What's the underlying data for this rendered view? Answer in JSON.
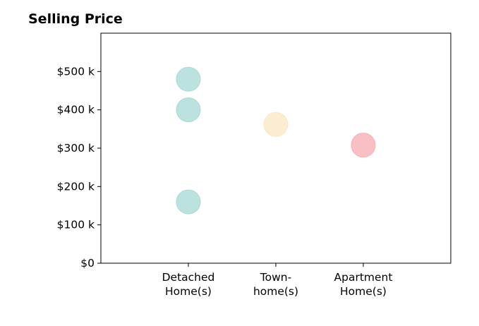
{
  "chart_data": {
    "type": "scatter",
    "title": "Selling Price",
    "xlabel": "",
    "ylabel": "",
    "categories": [
      [
        "Detached",
        "Home(s)"
      ],
      [
        "Town-",
        "home(s)"
      ],
      [
        "Apartment",
        "Home(s)"
      ]
    ],
    "y_tick_values": [
      0,
      100,
      200,
      300,
      400,
      500
    ],
    "y_tick_labels": [
      "$0",
      "$100 k",
      "$200 k",
      "$300 k",
      "$400 k",
      "$500 k"
    ],
    "ylim": [
      0,
      600
    ],
    "grid": false,
    "legend": "none",
    "points": [
      {
        "category": 0,
        "y": 480,
        "color": "#a8dad5"
      },
      {
        "category": 0,
        "y": 400,
        "color": "#a8dad5"
      },
      {
        "category": 0,
        "y": 160,
        "color": "#a8dad5"
      },
      {
        "category": 1,
        "y": 362,
        "color": "#f8e8c4"
      },
      {
        "category": 2,
        "y": 308,
        "color": "#f6aeb4"
      }
    ]
  }
}
